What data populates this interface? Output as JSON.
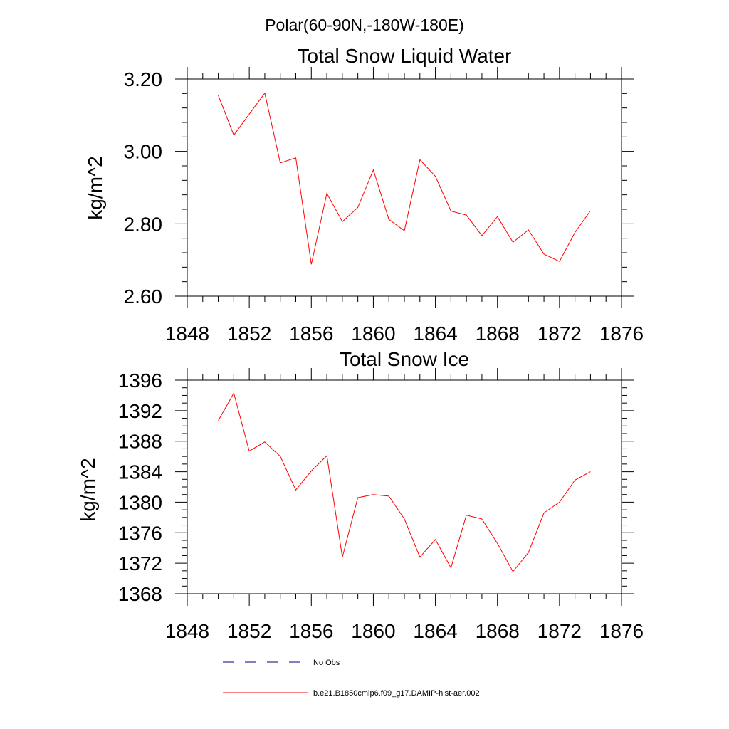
{
  "figure": {
    "main_title": "Polar(60-90N,-180W-180E)"
  },
  "legend": {
    "items": [
      {
        "label": "No Obs",
        "color": "#000080",
        "style": "dashed"
      },
      {
        "label": "b.e21.B1850cmip6.f09_g17.DAMIP-hist-aer.002",
        "color": "#ff0000",
        "style": "solid"
      }
    ]
  },
  "colors": {
    "series": "#ff0000",
    "axis": "#000000",
    "obs": "#000080"
  },
  "chart_data": [
    {
      "type": "line",
      "title": "Total Snow Liquid Water",
      "xlabel": "",
      "ylabel": "kg/m^2",
      "xlim": [
        1848,
        1876
      ],
      "ylim": [
        2.6,
        3.2
      ],
      "xticks": [
        1848,
        1852,
        1856,
        1860,
        1864,
        1868,
        1872,
        1876
      ],
      "xtick_labels": [
        "1848",
        "1852",
        "1856",
        "1860",
        "1864",
        "1868",
        "1872",
        "1876"
      ],
      "yticks": [
        2.6,
        2.8,
        3.0,
        3.2
      ],
      "ytick_labels": [
        "2.60",
        "2.80",
        "3.00",
        "3.20"
      ],
      "x_minor_step": 1,
      "y_minor_step": 0.04,
      "grid": false,
      "series": [
        {
          "name": "b.e21.B1850cmip6.f09_g17.DAMIP-hist-aer.002",
          "color": "#ff0000",
          "x": [
            1850,
            1851,
            1852,
            1853,
            1854,
            1855,
            1856,
            1857,
            1858,
            1859,
            1860,
            1861,
            1862,
            1863,
            1864,
            1865,
            1866,
            1867,
            1868,
            1869,
            1870,
            1871,
            1872,
            1873,
            1874
          ],
          "values": [
            3.155,
            3.045,
            3.103,
            3.161,
            2.968,
            2.982,
            2.688,
            2.884,
            2.806,
            2.845,
            2.949,
            2.812,
            2.781,
            2.977,
            2.931,
            2.835,
            2.824,
            2.767,
            2.82,
            2.749,
            2.783,
            2.716,
            2.696,
            2.776,
            2.836
          ]
        }
      ]
    },
    {
      "type": "line",
      "title": "Total Snow Ice",
      "xlabel": "",
      "ylabel": "kg/m^2",
      "xlim": [
        1848,
        1876
      ],
      "ylim": [
        1368,
        1396
      ],
      "xticks": [
        1848,
        1852,
        1856,
        1860,
        1864,
        1868,
        1872,
        1876
      ],
      "xtick_labels": [
        "1848",
        "1852",
        "1856",
        "1860",
        "1864",
        "1868",
        "1872",
        "1876"
      ],
      "yticks": [
        1368,
        1372,
        1376,
        1380,
        1384,
        1388,
        1392,
        1396
      ],
      "ytick_labels": [
        "1368",
        "1372",
        "1376",
        "1380",
        "1384",
        "1388",
        "1392",
        "1396"
      ],
      "x_minor_step": 1,
      "y_minor_step": 1,
      "grid": false,
      "series": [
        {
          "name": "b.e21.B1850cmip6.f09_g17.DAMIP-hist-aer.002",
          "color": "#ff0000",
          "x": [
            1850,
            1851,
            1852,
            1853,
            1854,
            1855,
            1856,
            1857,
            1858,
            1859,
            1860,
            1861,
            1862,
            1863,
            1864,
            1865,
            1866,
            1867,
            1868,
            1869,
            1870,
            1871,
            1872,
            1873,
            1874
          ],
          "values": [
            1390.7,
            1394.3,
            1386.7,
            1387.9,
            1386.0,
            1381.6,
            1384.1,
            1386.1,
            1372.8,
            1380.6,
            1381.0,
            1380.8,
            1377.8,
            1372.8,
            1375.1,
            1371.4,
            1378.3,
            1377.8,
            1374.6,
            1370.9,
            1373.4,
            1378.6,
            1380.0,
            1382.9,
            1384.0
          ]
        }
      ]
    }
  ]
}
